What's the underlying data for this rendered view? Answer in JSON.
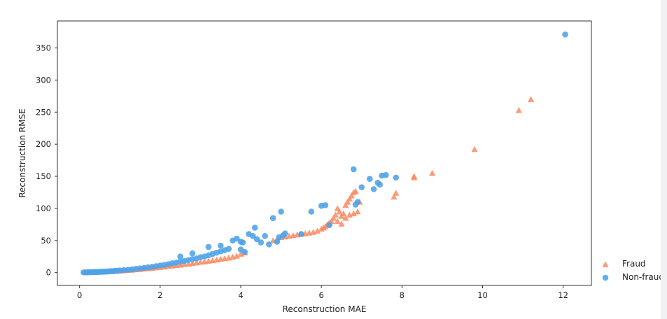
{
  "chart_data": {
    "type": "scatter",
    "title": "",
    "xlabel": "Reconstruction MAE",
    "ylabel": "Reconstruction RMSE",
    "xlim": [
      -0.55,
      12.7
    ],
    "ylim": [
      -20,
      392
    ],
    "xticks": [
      0,
      2,
      4,
      6,
      8,
      10,
      12
    ],
    "yticks": [
      0,
      50,
      100,
      150,
      200,
      250,
      300,
      350
    ],
    "legend": {
      "placement": "lower-right-outside"
    },
    "colors": {
      "fraud": "#fa8a5f",
      "non_fraud": "#4da2e8"
    },
    "series": [
      {
        "name": "Fraud",
        "marker": "triangle",
        "color": "#fa8a5f",
        "points": [
          [
            0.2,
            0.5
          ],
          [
            0.3,
            0.6
          ],
          [
            0.4,
            0.8
          ],
          [
            0.5,
            1.0
          ],
          [
            0.6,
            1.3
          ],
          [
            0.7,
            1.6
          ],
          [
            0.8,
            2.0
          ],
          [
            0.9,
            2.3
          ],
          [
            1.0,
            2.8
          ],
          [
            1.1,
            3.2
          ],
          [
            1.2,
            3.7
          ],
          [
            1.3,
            4.2
          ],
          [
            1.4,
            4.8
          ],
          [
            1.5,
            5.3
          ],
          [
            1.6,
            6.0
          ],
          [
            1.7,
            6.5
          ],
          [
            1.8,
            7.2
          ],
          [
            1.9,
            7.8
          ],
          [
            2.0,
            8.5
          ],
          [
            2.1,
            9.0
          ],
          [
            2.2,
            10.0
          ],
          [
            2.3,
            10.5
          ],
          [
            2.4,
            11.5
          ],
          [
            2.5,
            12.0
          ],
          [
            2.6,
            13.0
          ],
          [
            2.7,
            13.5
          ],
          [
            2.8,
            14.5
          ],
          [
            2.9,
            15.5
          ],
          [
            3.0,
            16.5
          ],
          [
            3.1,
            17.0
          ],
          [
            3.2,
            18.0
          ],
          [
            3.3,
            19.0
          ],
          [
            3.4,
            20.0
          ],
          [
            3.5,
            21.0
          ],
          [
            3.6,
            22.0
          ],
          [
            3.7,
            23.0
          ],
          [
            3.8,
            24.5
          ],
          [
            3.9,
            26.0
          ],
          [
            4.0,
            29.0
          ],
          [
            4.1,
            31.0
          ],
          [
            4.8,
            50.0
          ],
          [
            4.9,
            52.0
          ],
          [
            5.0,
            55.0
          ],
          [
            5.1,
            56.0
          ],
          [
            5.2,
            57.0
          ],
          [
            5.3,
            58.0
          ],
          [
            5.4,
            59.0
          ],
          [
            5.5,
            60.0
          ],
          [
            5.6,
            61.0
          ],
          [
            5.7,
            62.0
          ],
          [
            5.8,
            63.0
          ],
          [
            5.9,
            65.0
          ],
          [
            6.0,
            68.0
          ],
          [
            6.05,
            70.0
          ],
          [
            6.1,
            72.0
          ],
          [
            6.15,
            75.0
          ],
          [
            6.2,
            78.0
          ],
          [
            6.25,
            80.0
          ],
          [
            6.3,
            85.0
          ],
          [
            6.35,
            90.0
          ],
          [
            6.4,
            100.0
          ],
          [
            6.45,
            95.0
          ],
          [
            6.5,
            88.0
          ],
          [
            6.55,
            92.0
          ],
          [
            6.6,
            105.0
          ],
          [
            6.65,
            110.0
          ],
          [
            6.7,
            115.0
          ],
          [
            6.75,
            120.0
          ],
          [
            6.8,
            125.0
          ],
          [
            6.85,
            127.0
          ],
          [
            6.9,
            95.0
          ],
          [
            6.95,
            110.0
          ],
          [
            6.4,
            80.0
          ],
          [
            6.5,
            76.0
          ],
          [
            6.6,
            85.0
          ],
          [
            6.7,
            90.0
          ],
          [
            6.8,
            92.0
          ],
          [
            7.8,
            118.0
          ],
          [
            7.85,
            124.0
          ],
          [
            8.3,
            150.0
          ],
          [
            8.3,
            148.0
          ],
          [
            8.75,
            155.0
          ],
          [
            9.8,
            192.0
          ],
          [
            10.9,
            253.0
          ],
          [
            11.2,
            270.0
          ]
        ]
      },
      {
        "name": "Non-fraud",
        "marker": "circle",
        "color": "#4da2e8",
        "points": [
          [
            0.1,
            0.3
          ],
          [
            0.15,
            0.4
          ],
          [
            0.2,
            0.5
          ],
          [
            0.25,
            0.6
          ],
          [
            0.3,
            0.7
          ],
          [
            0.35,
            0.8
          ],
          [
            0.4,
            0.9
          ],
          [
            0.45,
            1.0
          ],
          [
            0.5,
            1.2
          ],
          [
            0.55,
            1.3
          ],
          [
            0.6,
            1.5
          ],
          [
            0.65,
            1.6
          ],
          [
            0.7,
            1.8
          ],
          [
            0.75,
            2.0
          ],
          [
            0.8,
            2.2
          ],
          [
            0.85,
            2.4
          ],
          [
            0.9,
            2.7
          ],
          [
            0.95,
            2.9
          ],
          [
            1.0,
            3.2
          ],
          [
            1.1,
            3.8
          ],
          [
            1.2,
            4.4
          ],
          [
            1.3,
            5.0
          ],
          [
            1.4,
            5.8
          ],
          [
            1.5,
            6.5
          ],
          [
            1.6,
            7.3
          ],
          [
            1.7,
            8.2
          ],
          [
            1.8,
            9.0
          ],
          [
            1.9,
            10.0
          ],
          [
            2.0,
            11.0
          ],
          [
            2.1,
            12.0
          ],
          [
            2.2,
            13.0
          ],
          [
            2.3,
            14.5
          ],
          [
            2.4,
            15.5
          ],
          [
            2.5,
            17.0
          ],
          [
            2.6,
            18.0
          ],
          [
            2.7,
            19.5
          ],
          [
            2.8,
            21.0
          ],
          [
            2.9,
            22.0
          ],
          [
            3.0,
            24.0
          ],
          [
            3.1,
            25.0
          ],
          [
            3.2,
            27.0
          ],
          [
            3.3,
            29.0
          ],
          [
            3.4,
            31.0
          ],
          [
            3.5,
            33.0
          ],
          [
            3.6,
            35.0
          ],
          [
            3.7,
            37.0
          ],
          [
            3.8,
            50.0
          ],
          [
            3.9,
            53.0
          ],
          [
            2.5,
            25.0
          ],
          [
            2.8,
            30.0
          ],
          [
            3.2,
            40.0
          ],
          [
            3.5,
            42.0
          ],
          [
            4.0,
            48.0
          ],
          [
            4.05,
            47.0
          ],
          [
            4.0,
            36.0
          ],
          [
            4.1,
            32.0
          ],
          [
            4.2,
            60.0
          ],
          [
            4.3,
            57.0
          ],
          [
            4.35,
            70.0
          ],
          [
            4.4,
            52.0
          ],
          [
            4.5,
            47.0
          ],
          [
            4.6,
            57.0
          ],
          [
            4.7,
            44.0
          ],
          [
            4.8,
            85.0
          ],
          [
            4.9,
            48.0
          ],
          [
            4.95,
            55.0
          ],
          [
            5.0,
            95.0
          ],
          [
            5.05,
            58.0
          ],
          [
            5.1,
            61.0
          ],
          [
            5.5,
            60.0
          ],
          [
            5.75,
            95.0
          ],
          [
            6.0,
            104.0
          ],
          [
            6.1,
            105.0
          ],
          [
            6.2,
            74.0
          ],
          [
            6.8,
            161.0
          ],
          [
            6.85,
            106.0
          ],
          [
            6.9,
            110.0
          ],
          [
            7.0,
            133.0
          ],
          [
            7.2,
            146.0
          ],
          [
            7.3,
            130.0
          ],
          [
            7.4,
            140.0
          ],
          [
            7.45,
            137.0
          ],
          [
            7.5,
            151.0
          ],
          [
            7.6,
            152.0
          ],
          [
            7.85,
            148.0
          ],
          [
            12.05,
            371.0
          ]
        ]
      }
    ]
  }
}
